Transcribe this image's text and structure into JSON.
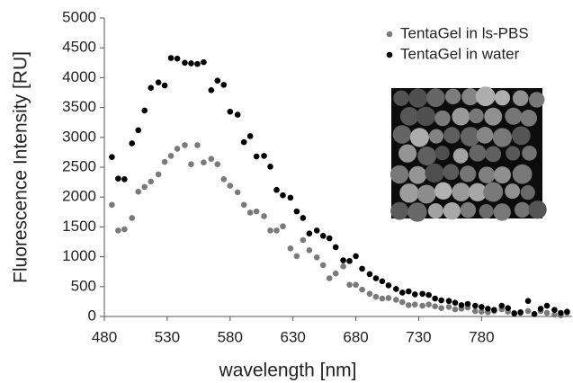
{
  "chart_data": {
    "type": "scatter",
    "xlabel": "wavelength [nm]",
    "ylabel": "Fluorescence Intensity [RU]",
    "xlim": [
      480,
      852
    ],
    "ylim": [
      0,
      5000
    ],
    "xticks": [
      480,
      530,
      580,
      630,
      680,
      730,
      780
    ],
    "yticks": [
      0,
      500,
      1000,
      1500,
      2000,
      2500,
      3000,
      3500,
      4000,
      4500,
      5000
    ],
    "x": [
      486,
      491,
      496,
      502,
      507,
      512,
      517,
      523,
      528,
      533,
      538,
      544,
      549,
      554,
      559,
      565,
      570,
      575,
      580,
      586,
      591,
      596,
      601,
      607,
      612,
      617,
      622,
      628,
      633,
      638,
      643,
      649,
      654,
      659,
      664,
      670,
      675,
      680,
      685,
      691,
      696,
      701,
      706,
      712,
      717,
      722,
      727,
      733,
      738,
      743,
      748,
      754,
      759,
      764,
      769,
      775,
      780,
      785,
      790,
      796,
      801,
      806,
      811,
      817,
      822,
      827,
      832,
      838,
      843,
      848
    ],
    "series": [
      {
        "name": "TentaGel in ls-PBS",
        "color": "#7a7a7a",
        "values": [
          1870,
          1440,
          1460,
          1650,
          2090,
          2170,
          2260,
          2380,
          2590,
          2690,
          2810,
          2870,
          2550,
          2870,
          2580,
          2640,
          2550,
          2300,
          2190,
          2080,
          1870,
          1740,
          1760,
          1680,
          1440,
          1440,
          1510,
          1140,
          1010,
          1280,
          1110,
          990,
          860,
          640,
          720,
          840,
          530,
          530,
          450,
          380,
          330,
          300,
          310,
          280,
          240,
          190,
          200,
          180,
          200,
          170,
          140,
          160,
          120,
          130,
          150,
          90,
          80,
          70,
          90,
          120,
          80,
          60,
          60,
          90,
          40,
          90,
          60,
          30,
          20,
          60
        ]
      },
      {
        "name": "TentaGel in water",
        "color": "#000000",
        "values": [
          2670,
          2310,
          2300,
          2900,
          3120,
          3450,
          3830,
          3920,
          3870,
          4330,
          4320,
          4250,
          4240,
          4230,
          4260,
          3790,
          3950,
          3880,
          3430,
          3380,
          2920,
          3020,
          2680,
          2690,
          2510,
          2120,
          2030,
          1990,
          1760,
          1650,
          1390,
          1440,
          1350,
          1310,
          1160,
          940,
          930,
          1010,
          800,
          710,
          640,
          590,
          520,
          460,
          400,
          420,
          370,
          380,
          360,
          300,
          270,
          260,
          230,
          190,
          210,
          180,
          160,
          130,
          110,
          180,
          140,
          50,
          70,
          260,
          40,
          130,
          180,
          110,
          60,
          80
        ]
      }
    ]
  }
}
